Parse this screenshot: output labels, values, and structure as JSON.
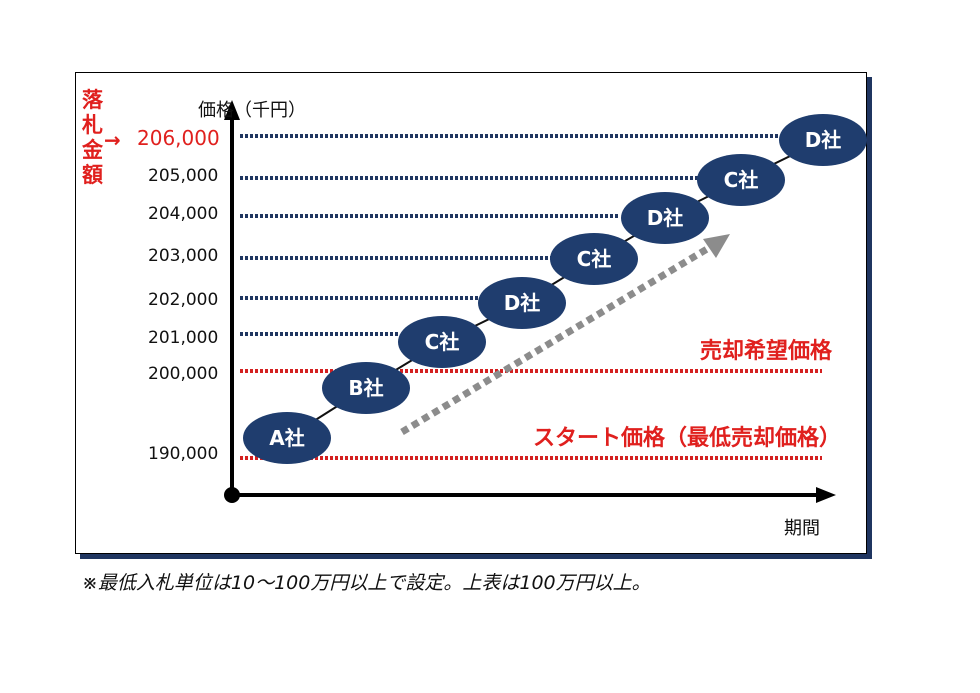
{
  "axis": {
    "y_title": "価格（千円）",
    "x_title": "期間"
  },
  "winning_bid": {
    "label": "落札金額",
    "arrow": "→",
    "value": "206,000"
  },
  "y_ticks": [
    "205,000",
    "204,000",
    "203,000",
    "202,000",
    "201,000",
    "200,000",
    "190,000"
  ],
  "price_lines": [
    {
      "label": "売却希望価格",
      "value": "200,000"
    },
    {
      "label": "スタート価格（最低売却価格）",
      "value": "190,000"
    }
  ],
  "bids": [
    {
      "label": "A社",
      "value": 190000
    },
    {
      "label": "B社",
      "value": 200000
    },
    {
      "label": "C社",
      "value": 201000
    },
    {
      "label": "D社",
      "value": 202000
    },
    {
      "label": "C社",
      "value": 203000
    },
    {
      "label": "D社",
      "value": 204000
    },
    {
      "label": "C社",
      "value": 205000
    },
    {
      "label": "D社",
      "value": 206000
    }
  ],
  "colors": {
    "ellipse": "#1f3d6e",
    "dotted_blue": "#1f3560",
    "dotted_red": "#d42020",
    "red_text": "#e0201e",
    "trend_arrow": "#8c8c8c"
  },
  "footnote": "※最低入札単位は10～100万円以上で設定。上表は100万円以上。"
}
